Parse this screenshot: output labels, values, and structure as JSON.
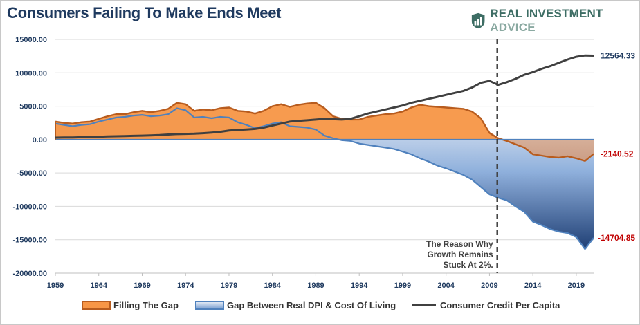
{
  "title": "Consumers Failing To Make Ends Meet",
  "brand": {
    "name_main": "REAL INVESTMENT",
    "name_tail": " ADVICE",
    "icon": "chart-logo-icon",
    "color": "#3d6d64"
  },
  "chart_data": {
    "type": "area",
    "xlim": [
      1959,
      2021
    ],
    "ylim": [
      -20000,
      15000
    ],
    "y_ticks": [
      "15000.00",
      "10000.00",
      "5000.00",
      "0.00",
      "-5000.00",
      "-10000.00",
      "-15000.00",
      "-20000.00"
    ],
    "x_ticks": [
      "1959",
      "1964",
      "1969",
      "1974",
      "1979",
      "1984",
      "1989",
      "1994",
      "1999",
      "2004",
      "2009",
      "2014",
      "2019"
    ],
    "grid": true,
    "legend_position": "bottom",
    "annotation": {
      "lines": [
        "The Reason Why",
        "Growth Remains",
        "Stuck At 2%."
      ],
      "x": 2009.9
    },
    "end_labels": {
      "credit": "12564.33",
      "filling": "-2140.52",
      "gap": "-14704.85"
    },
    "series": [
      {
        "name": "Filling The Gap",
        "color": "#f79646",
        "line": "#b85c1e",
        "x": [
          1959,
          1960,
          1961,
          1962,
          1963,
          1964,
          1965,
          1966,
          1967,
          1968,
          1969,
          1970,
          1971,
          1972,
          1973,
          1974,
          1975,
          1976,
          1977,
          1978,
          1979,
          1980,
          1981,
          1982,
          1983,
          1984,
          1985,
          1986,
          1987,
          1988,
          1989,
          1990,
          1991,
          1992,
          1993,
          1994,
          1995,
          1996,
          1997,
          1998,
          1999,
          2000,
          2001,
          2002,
          2003,
          2004,
          2005,
          2006,
          2007,
          2008,
          2009,
          2010,
          2011,
          2012,
          2013,
          2014,
          2015,
          2016,
          2017,
          2018,
          2019,
          2020,
          2021
        ],
        "values": [
          2700,
          2500,
          2400,
          2600,
          2700,
          3100,
          3500,
          3800,
          3800,
          4100,
          4300,
          4100,
          4300,
          4600,
          5500,
          5300,
          4300,
          4500,
          4400,
          4700,
          4800,
          4300,
          4200,
          3900,
          4300,
          5000,
          5300,
          4900,
          5200,
          5400,
          5500,
          4700,
          3500,
          3100,
          3000,
          3000,
          3400,
          3600,
          3800,
          3900,
          4200,
          4800,
          5200,
          5000,
          4900,
          4800,
          4700,
          4600,
          4200,
          3200,
          1000,
          200,
          -200,
          -700,
          -1200,
          -2200,
          -2400,
          -2600,
          -2700,
          -2500,
          -2800,
          -3200,
          -2140
        ]
      },
      {
        "name": "Gap Between Real DPI & Cost Of Living",
        "color": "#4f81bd",
        "line": "#4f81bd",
        "x": [
          1959,
          1960,
          1961,
          1962,
          1963,
          1964,
          1965,
          1966,
          1967,
          1968,
          1969,
          1970,
          1971,
          1972,
          1973,
          1974,
          1975,
          1976,
          1977,
          1978,
          1979,
          1980,
          1981,
          1982,
          1983,
          1984,
          1985,
          1986,
          1987,
          1988,
          1989,
          1990,
          1991,
          1992,
          1993,
          1994,
          1995,
          1996,
          1997,
          1998,
          1999,
          2000,
          2001,
          2002,
          2003,
          2004,
          2005,
          2006,
          2007,
          2008,
          2009,
          2010,
          2011,
          2012,
          2013,
          2014,
          2015,
          2016,
          2017,
          2018,
          2019,
          2020,
          2021
        ],
        "values": [
          2400,
          2200,
          2000,
          2200,
          2300,
          2700,
          3000,
          3300,
          3400,
          3600,
          3700,
          3500,
          3600,
          3800,
          4700,
          4400,
          3300,
          3400,
          3200,
          3400,
          3300,
          2600,
          2200,
          1700,
          2000,
          2400,
          2600,
          2000,
          1900,
          1800,
          1500,
          600,
          200,
          -100,
          -200,
          -600,
          -800,
          -1000,
          -1200,
          -1400,
          -1800,
          -2200,
          -2800,
          -3300,
          -3900,
          -4300,
          -4800,
          -5300,
          -6000,
          -7100,
          -8200,
          -8700,
          -9100,
          -10000,
          -10800,
          -12300,
          -12800,
          -13400,
          -13800,
          -14000,
          -14600,
          -16400,
          -14705
        ]
      },
      {
        "name": "Consumer Credit Per Capita",
        "color": "#404040",
        "line": "#404040",
        "x": [
          1959,
          1960,
          1961,
          1962,
          1963,
          1964,
          1965,
          1966,
          1967,
          1968,
          1969,
          1970,
          1971,
          1972,
          1973,
          1974,
          1975,
          1976,
          1977,
          1978,
          1979,
          1980,
          1981,
          1982,
          1983,
          1984,
          1985,
          1986,
          1987,
          1988,
          1989,
          1990,
          1991,
          1992,
          1993,
          1994,
          1995,
          1996,
          1997,
          1998,
          1999,
          2000,
          2001,
          2002,
          2003,
          2004,
          2005,
          2006,
          2007,
          2008,
          2009,
          2010,
          2011,
          2012,
          2013,
          2014,
          2015,
          2016,
          2017,
          2018,
          2019,
          2020,
          2021
        ],
        "values": [
          300,
          320,
          330,
          360,
          390,
          430,
          470,
          500,
          520,
          560,
          600,
          630,
          680,
          760,
          820,
          860,
          890,
          960,
          1050,
          1170,
          1350,
          1450,
          1520,
          1600,
          1800,
          2100,
          2400,
          2700,
          2800,
          2900,
          3000,
          3100,
          3050,
          3000,
          3100,
          3500,
          3900,
          4200,
          4500,
          4800,
          5100,
          5500,
          5800,
          6100,
          6400,
          6700,
          7000,
          7300,
          7800,
          8500,
          8800,
          8200,
          8600,
          9100,
          9700,
          10100,
          10600,
          11000,
          11500,
          12000,
          12400,
          12600,
          12564
        ]
      }
    ]
  }
}
